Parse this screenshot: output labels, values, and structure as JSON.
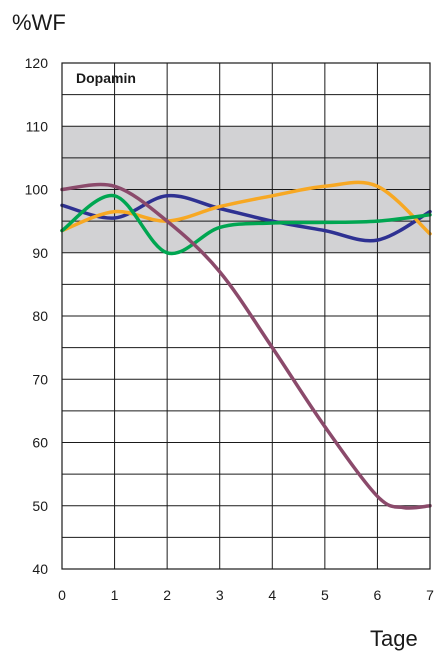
{
  "chart_data": {
    "type": "line",
    "title": "Dopamin",
    "ylabel": "%WF",
    "xlabel": "Tage",
    "xlim": [
      0,
      7
    ],
    "ylim": [
      40,
      120
    ],
    "xticks": [
      0,
      1,
      2,
      3,
      4,
      5,
      6,
      7
    ],
    "yticks": [
      40,
      50,
      60,
      70,
      80,
      90,
      100,
      110,
      120
    ],
    "grid": true,
    "reference_band": [
      90,
      110
    ],
    "series": [
      {
        "color": "#2e3192",
        "points": [
          [
            0,
            97.5
          ],
          [
            1,
            95.5
          ],
          [
            2,
            99
          ],
          [
            3,
            97
          ],
          [
            4,
            95
          ],
          [
            5,
            93.5
          ],
          [
            6,
            92
          ],
          [
            7,
            96.5
          ]
        ]
      },
      {
        "color": "#f7a823",
        "points": [
          [
            0,
            93.5
          ],
          [
            1,
            96.5
          ],
          [
            2,
            95
          ],
          [
            3,
            97.3
          ],
          [
            4,
            99
          ],
          [
            5,
            100.5
          ],
          [
            6,
            100.5
          ],
          [
            7,
            93
          ]
        ]
      },
      {
        "color": "#00a651",
        "points": [
          [
            0,
            93.5
          ],
          [
            1,
            99
          ],
          [
            2,
            90
          ],
          [
            3,
            94
          ],
          [
            4,
            94.7
          ],
          [
            5,
            94.8
          ],
          [
            6,
            95
          ],
          [
            7,
            96
          ]
        ]
      },
      {
        "color": "#8b4a6b",
        "points": [
          [
            0,
            100
          ],
          [
            1,
            100.5
          ],
          [
            2,
            95
          ],
          [
            3,
            87
          ],
          [
            4,
            75
          ],
          [
            5,
            62.5
          ],
          [
            6,
            51.5
          ],
          [
            6.5,
            49.7
          ],
          [
            7,
            50
          ]
        ]
      }
    ]
  }
}
